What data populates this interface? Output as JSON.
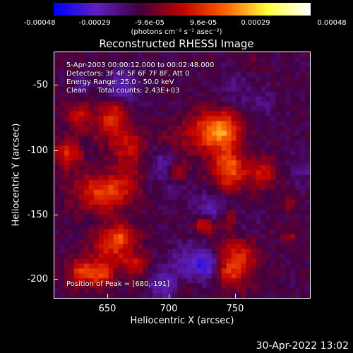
{
  "colorbar": {
    "ticks": [
      "-0.00048",
      "-0.00029",
      "-9.6e-05",
      "9.6e-05",
      "0.00029",
      "0.00048"
    ],
    "units": "(photons cm⁻² s⁻¹ asec⁻²)",
    "colormap": [
      "#0000ff",
      "#6020c0",
      "#400040",
      "#c00000",
      "#ff6000",
      "#ffff40",
      "#ffffff"
    ]
  },
  "title": "Reconstructed RHESSI Image",
  "info": {
    "time": "5-Apr-2003 00:00:12.000 to 00:02:48.000",
    "detectors": "Detectors: 3F 4F 5F 6F 7F 8F, Att 0",
    "energy": "Energy Range: 25.0 - 50.0 keV",
    "clean": "Clean     Total counts: 2.43E+03"
  },
  "peak": "Position of Peak = [680,-191]",
  "axes": {
    "xlabel": "Heliocentric X (arcsec)",
    "ylabel": "Heliocentric Y (arcsec)",
    "xticks": [
      "650",
      "700",
      "750"
    ],
    "yticks": [
      "-50",
      "-100",
      "-150",
      "-200"
    ],
    "xrange": [
      608,
      798
    ],
    "yrange": [
      -213,
      -32
    ]
  },
  "timestamp": "30-Apr-2022 13:02"
}
